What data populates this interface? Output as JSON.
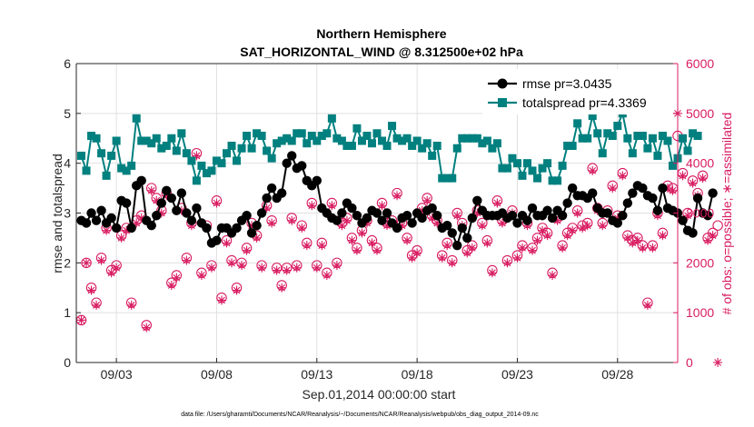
{
  "chart_data": {
    "type": "line",
    "title_line1": "Northern Hemisphere",
    "title_line2": "SAT_HORIZONTAL_WIND @ 8.312500e+02 hPa",
    "xlabel": "Sep.01,2014 00:00:00 start",
    "ylabel_left": "rmse and totalspread",
    "ylabel_right": "# of obs: o=possible; ∗=assimilated",
    "footnote": "data file: /Users/gharamti/Documents/NCAR/Reanalysis/~/Documents/NCAR/Reanalysis/webpub/obs_diag_output_2014-09.nc",
    "x_ticks": [
      {
        "day": 3,
        "label": "09/03"
      },
      {
        "day": 8,
        "label": "09/08"
      },
      {
        "day": 13,
        "label": "09/13"
      },
      {
        "day": 18,
        "label": "09/18"
      },
      {
        "day": 23,
        "label": "09/23"
      },
      {
        "day": 28,
        "label": "09/28"
      }
    ],
    "xlim": [
      1.0,
      31.0
    ],
    "ylim_left": [
      0,
      6
    ],
    "ylim_right": [
      0,
      6000
    ],
    "y_ticks_left": [
      "0",
      "1",
      "2",
      "3",
      "4",
      "5",
      "6"
    ],
    "y_ticks_right": [
      "0",
      "1000",
      "2000",
      "3000",
      "4000",
      "5000",
      "6000"
    ],
    "grid": true,
    "legend_position": "top-right",
    "colors": {
      "rmse": "#000000",
      "totalspread": "#00807f",
      "obs": "#d81b60",
      "axis": "#262626",
      "grid": "#e0e0e0"
    },
    "x_start_day": 1.25,
    "x_step_days": 0.25,
    "series": [
      {
        "name": "rmse pr=3.0435",
        "axis": "left",
        "marker": "circle",
        "values": [
          2.85,
          2.8,
          3.0,
          2.85,
          3.05,
          2.8,
          2.9,
          2.7,
          3.25,
          3.2,
          2.7,
          3.55,
          3.65,
          2.85,
          2.75,
          2.95,
          3.2,
          3.45,
          3.3,
          3.05,
          3.4,
          3.0,
          2.85,
          3.1,
          2.8,
          2.7,
          2.4,
          2.45,
          2.7,
          2.7,
          2.6,
          2.7,
          2.85,
          2.95,
          2.6,
          2.75,
          3.0,
          3.3,
          3.5,
          3.3,
          3.4,
          4.0,
          4.15,
          3.9,
          3.95,
          3.65,
          3.55,
          3.65,
          3.1,
          3.0,
          2.9,
          2.85,
          3.0,
          3.2,
          3.1,
          2.95,
          2.8,
          2.9,
          3.05,
          3.0,
          2.85,
          3.0,
          2.8,
          2.7,
          2.9,
          2.95,
          2.8,
          3.0,
          2.9,
          3.05,
          3.1,
          2.95,
          2.7,
          2.75,
          2.6,
          2.35,
          2.7,
          2.5,
          2.9,
          3.25,
          3.05,
          2.95,
          2.95,
          2.95,
          3.0,
          2.9,
          2.95,
          2.8,
          2.95,
          2.85,
          3.1,
          2.95,
          2.95,
          3.05,
          2.9,
          3.05,
          2.95,
          3.2,
          3.5,
          3.35,
          3.35,
          3.3,
          3.4,
          3.1,
          3.0,
          3.0,
          2.85,
          2.8,
          2.95,
          3.2,
          3.4,
          3.55,
          3.5,
          3.35,
          3.3,
          3.05,
          3.5,
          3.1,
          3.05,
          3.0,
          2.85,
          2.65,
          2.6,
          3.3,
          3.0,
          2.95,
          3.4
        ]
      },
      {
        "name": "totalspread pr=4.3369",
        "axis": "left",
        "marker": "square",
        "values": [
          4.15,
          3.85,
          4.55,
          4.5,
          4.2,
          3.75,
          4.15,
          4.45,
          3.9,
          3.85,
          3.95,
          4.9,
          4.45,
          4.45,
          4.4,
          4.5,
          4.3,
          4.35,
          4.5,
          4.25,
          4.6,
          4.2,
          4.05,
          3.65,
          3.95,
          3.8,
          3.85,
          4.05,
          4.0,
          4.2,
          4.35,
          4.05,
          4.3,
          4.55,
          4.3,
          4.6,
          4.55,
          4.25,
          4.1,
          4.4,
          4.45,
          4.5,
          4.45,
          4.6,
          4.6,
          4.4,
          4.55,
          4.45,
          4.55,
          4.6,
          4.9,
          4.5,
          4.45,
          4.35,
          4.35,
          4.7,
          4.45,
          4.55,
          4.4,
          4.6,
          4.45,
          4.35,
          4.75,
          4.5,
          4.45,
          4.5,
          4.35,
          4.45,
          4.3,
          4.4,
          4.15,
          4.35,
          3.7,
          3.7,
          3.7,
          4.3,
          4.5,
          4.5,
          4.5,
          4.5,
          4.4,
          4.45,
          4.3,
          4.4,
          3.9,
          3.9,
          4.1,
          4.0,
          3.75,
          4.0,
          3.85,
          3.7,
          3.9,
          4.0,
          3.65,
          3.65,
          3.95,
          4.35,
          4.35,
          4.8,
          4.5,
          4.5,
          4.95,
          4.6,
          4.2,
          4.6,
          4.55,
          4.75,
          5.0,
          4.5,
          4.2,
          4.55,
          4.55,
          4.3,
          4.5,
          4.15,
          4.55,
          4.45,
          3.95,
          4.1,
          4.5,
          4.25,
          4.6,
          4.55
        ]
      },
      {
        "name": "possible",
        "axis": "right",
        "marker": "circle-open",
        "values": [
          850,
          2000,
          1500,
          1200,
          2100,
          2700,
          1850,
          1950,
          2550,
          2700,
          1200,
          2850,
          2950,
          750,
          3500,
          3300,
          3050,
          3400,
          1600,
          1750,
          3100,
          2100,
          2800,
          4200,
          1800,
          2750,
          1950,
          3250,
          1300,
          2450,
          2050,
          1500,
          2000,
          2300,
          2800,
          2550,
          1950,
          3150,
          2850,
          1900,
          1550,
          1900,
          2900,
          1950,
          2750,
          2400,
          3200,
          1950,
          2400,
          1800,
          3200,
          2000,
          2800,
          2900,
          2500,
          2300,
          2650,
          2850,
          2450,
          2300,
          3200,
          2800,
          2850,
          3400,
          2800,
          2500,
          2150,
          2250,
          3100,
          3300,
          2950,
          2850,
          2150,
          2400,
          2050,
          3000,
          2800,
          2250,
          2350,
          3050,
          2800,
          2450,
          1850,
          3250,
          2850,
          2050,
          3050,
          2150,
          2350,
          2800,
          2300,
          2500,
          2700,
          2600,
          1800,
          2900,
          2350,
          2600,
          2700,
          3050,
          2750,
          2800,
          3900,
          3100,
          2800,
          3050,
          3550,
          2950,
          3800,
          2550,
          2450,
          2500,
          2350,
          1200,
          2350,
          3000,
          2600,
          3550,
          3500,
          4550,
          3800,
          3000,
          3650,
          3400,
          3750,
          2500,
          2600,
          2750
        ]
      },
      {
        "name": "assimilated",
        "axis": "right",
        "marker": "asterisk",
        "values": [
          850,
          2000,
          1450,
          1150,
          2050,
          2650,
          1800,
          1900,
          2500,
          2650,
          1150,
          2800,
          2900,
          700,
          3450,
          3250,
          3000,
          3350,
          1550,
          1700,
          3050,
          2050,
          2750,
          4150,
          1750,
          2700,
          1900,
          3200,
          1250,
          2400,
          2000,
          1450,
          1950,
          2250,
          2750,
          2500,
          1900,
          3100,
          2800,
          1850,
          1500,
          1850,
          2850,
          1900,
          2700,
          2350,
          3150,
          1900,
          2350,
          1750,
          3150,
          1950,
          2750,
          2850,
          2450,
          2250,
          2600,
          2800,
          2400,
          2250,
          3150,
          2750,
          2800,
          3350,
          2750,
          2450,
          2100,
          2200,
          3050,
          3250,
          2900,
          2800,
          2100,
          2350,
          2000,
          2950,
          2750,
          2200,
          2300,
          3000,
          2750,
          2400,
          1800,
          3200,
          2800,
          2000,
          3000,
          2100,
          2300,
          2750,
          2250,
          2450,
          2650,
          2550,
          1750,
          2850,
          2300,
          2550,
          2650,
          3000,
          2700,
          2750,
          3850,
          3050,
          2750,
          3000,
          3500,
          2900,
          3750,
          2500,
          2400,
          2450,
          2300,
          1150,
          2300,
          2950,
          2550,
          3500,
          3450,
          5000,
          3750,
          2950,
          3600,
          3350,
          3700,
          2450,
          2550,
          0
        ]
      }
    ]
  }
}
